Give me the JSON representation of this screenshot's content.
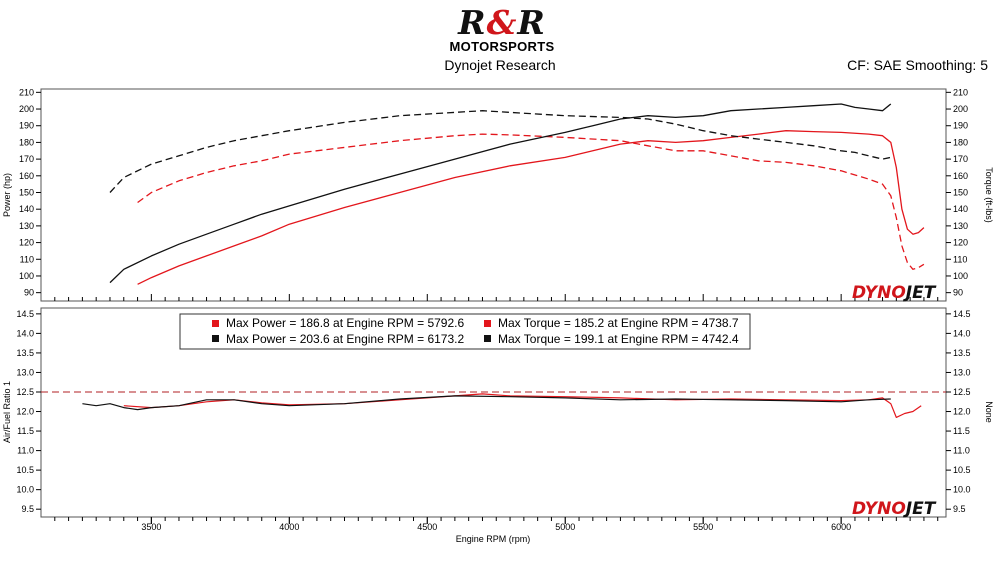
{
  "header": {
    "logo_text": "R&R",
    "logo_sub": "MOTORSPORTS",
    "subtitle": "Dynojet Research",
    "correction": "CF: SAE Smoothing: 5"
  },
  "colors": {
    "run1": "#e3161c",
    "run2": "#111111",
    "afr_target": "#b01f23",
    "brand_red": "#d0161b"
  },
  "brand": {
    "part1": "DYNO",
    "part2": "JET"
  },
  "chart_data": [
    {
      "type": "line",
      "xlabel": "Engine RPM (rpm)",
      "ylabel": "Power (hp)",
      "ylabel_right": "Torque (ft-lbs)",
      "xlim": [
        3100,
        6380
      ],
      "xticks": [
        3500,
        4000,
        4500,
        5000,
        5500,
        6000
      ],
      "ylim": [
        85,
        212
      ],
      "yticks": [
        90,
        100,
        110,
        120,
        130,
        140,
        150,
        160,
        170,
        180,
        190,
        200,
        210
      ],
      "series": [
        {
          "run": 1,
          "quantity": "power",
          "dash": false,
          "x": [
            3450,
            3500,
            3600,
            3700,
            3800,
            3900,
            4000,
            4200,
            4400,
            4600,
            4800,
            5000,
            5100,
            5200,
            5300,
            5400,
            5500,
            5600,
            5700,
            5800,
            5900,
            6000,
            6100,
            6150,
            6180,
            6200,
            6220,
            6240,
            6260,
            6280,
            6300
          ],
          "y": [
            95,
            99,
            106,
            112,
            118,
            124,
            131,
            141,
            150,
            159,
            166,
            171,
            175,
            179,
            181,
            180,
            181,
            183,
            185,
            187,
            186.5,
            186,
            185,
            184,
            180,
            165,
            140,
            128,
            125,
            126,
            129
          ]
        },
        {
          "run": 1,
          "quantity": "torque",
          "dash": true,
          "x": [
            3450,
            3500,
            3600,
            3700,
            3800,
            3900,
            4000,
            4200,
            4400,
            4600,
            4700,
            4800,
            5000,
            5200,
            5300,
            5400,
            5500,
            5600,
            5700,
            5800,
            5900,
            6000,
            6100,
            6150,
            6180,
            6200,
            6220,
            6240,
            6260,
            6280,
            6300
          ],
          "y": [
            144,
            150,
            157,
            162,
            166,
            169,
            173,
            177,
            181,
            184,
            185,
            184.5,
            183,
            181,
            178,
            175,
            175,
            172,
            169,
            168,
            166,
            163,
            158,
            155,
            148,
            135,
            118,
            108,
            104,
            105,
            107
          ]
        },
        {
          "run": 2,
          "quantity": "power",
          "dash": false,
          "x": [
            3350,
            3400,
            3500,
            3600,
            3700,
            3800,
            3900,
            4000,
            4200,
            4400,
            4600,
            4800,
            5000,
            5100,
            5200,
            5300,
            5400,
            5500,
            5600,
            5700,
            5800,
            5900,
            6000,
            6050,
            6100,
            6150,
            6180
          ],
          "y": [
            96,
            104,
            112,
            119,
            125,
            131,
            137,
            142,
            152,
            161,
            170,
            179,
            186,
            190,
            194,
            196,
            195,
            196,
            199,
            200,
            201,
            202,
            203,
            201,
            200,
            199,
            203
          ]
        },
        {
          "run": 2,
          "quantity": "torque",
          "dash": true,
          "x": [
            3350,
            3400,
            3500,
            3600,
            3700,
            3800,
            3900,
            4000,
            4200,
            4400,
            4600,
            4700,
            4800,
            5000,
            5200,
            5300,
            5400,
            5500,
            5600,
            5700,
            5800,
            5900,
            6000,
            6050,
            6100,
            6150,
            6180
          ],
          "y": [
            150,
            159,
            167,
            172,
            177,
            181,
            184,
            187,
            192,
            196,
            198,
            199,
            198,
            196,
            195,
            194,
            191,
            187,
            184,
            182,
            180,
            178,
            175,
            174,
            172,
            170,
            171
          ]
        }
      ]
    },
    {
      "type": "line",
      "xlabel": "Engine RPM (rpm)",
      "ylabel": "Air/Fuel Ratio 1",
      "ylabel_right": "None",
      "xlim": [
        3100,
        6380
      ],
      "xticks": [
        3500,
        4000,
        4500,
        5000,
        5500,
        6000
      ],
      "ylim": [
        9.3,
        14.65
      ],
      "yticks": [
        9.5,
        10.0,
        10.5,
        11.0,
        11.5,
        12.0,
        12.5,
        13.0,
        13.5,
        14.0,
        14.5
      ],
      "target_afr": 12.5,
      "series": [
        {
          "run": 1,
          "x": [
            3400,
            3500,
            3600,
            3700,
            3800,
            3900,
            4000,
            4200,
            4400,
            4600,
            4700,
            4800,
            5000,
            5200,
            5400,
            5600,
            5800,
            6000,
            6100,
            6150,
            6180,
            6200,
            6230,
            6260,
            6290
          ],
          "y": [
            12.15,
            12.1,
            12.15,
            12.25,
            12.3,
            12.22,
            12.17,
            12.2,
            12.3,
            12.4,
            12.45,
            12.4,
            12.38,
            12.35,
            12.3,
            12.32,
            12.3,
            12.28,
            12.3,
            12.35,
            12.2,
            11.85,
            11.95,
            12.0,
            12.15
          ]
        },
        {
          "run": 2,
          "x": [
            3250,
            3300,
            3350,
            3400,
            3450,
            3500,
            3600,
            3700,
            3800,
            3900,
            4000,
            4200,
            4400,
            4600,
            4800,
            5000,
            5200,
            5400,
            5600,
            5800,
            6000,
            6100,
            6180
          ],
          "y": [
            12.2,
            12.15,
            12.2,
            12.1,
            12.05,
            12.1,
            12.15,
            12.3,
            12.3,
            12.2,
            12.15,
            12.2,
            12.32,
            12.4,
            12.38,
            12.35,
            12.3,
            12.32,
            12.3,
            12.28,
            12.25,
            12.3,
            12.32
          ]
        }
      ]
    }
  ],
  "legend": {
    "items": [
      {
        "run": 1,
        "power": "Max Power = 186.8 at Engine RPM = 5792.6",
        "torque": "Max Torque = 185.2 at Engine RPM = 4738.7"
      },
      {
        "run": 2,
        "power": "Max Power = 203.6 at Engine RPM = 6173.2",
        "torque": "Max Torque = 199.1 at Engine RPM = 4742.4"
      }
    ]
  }
}
